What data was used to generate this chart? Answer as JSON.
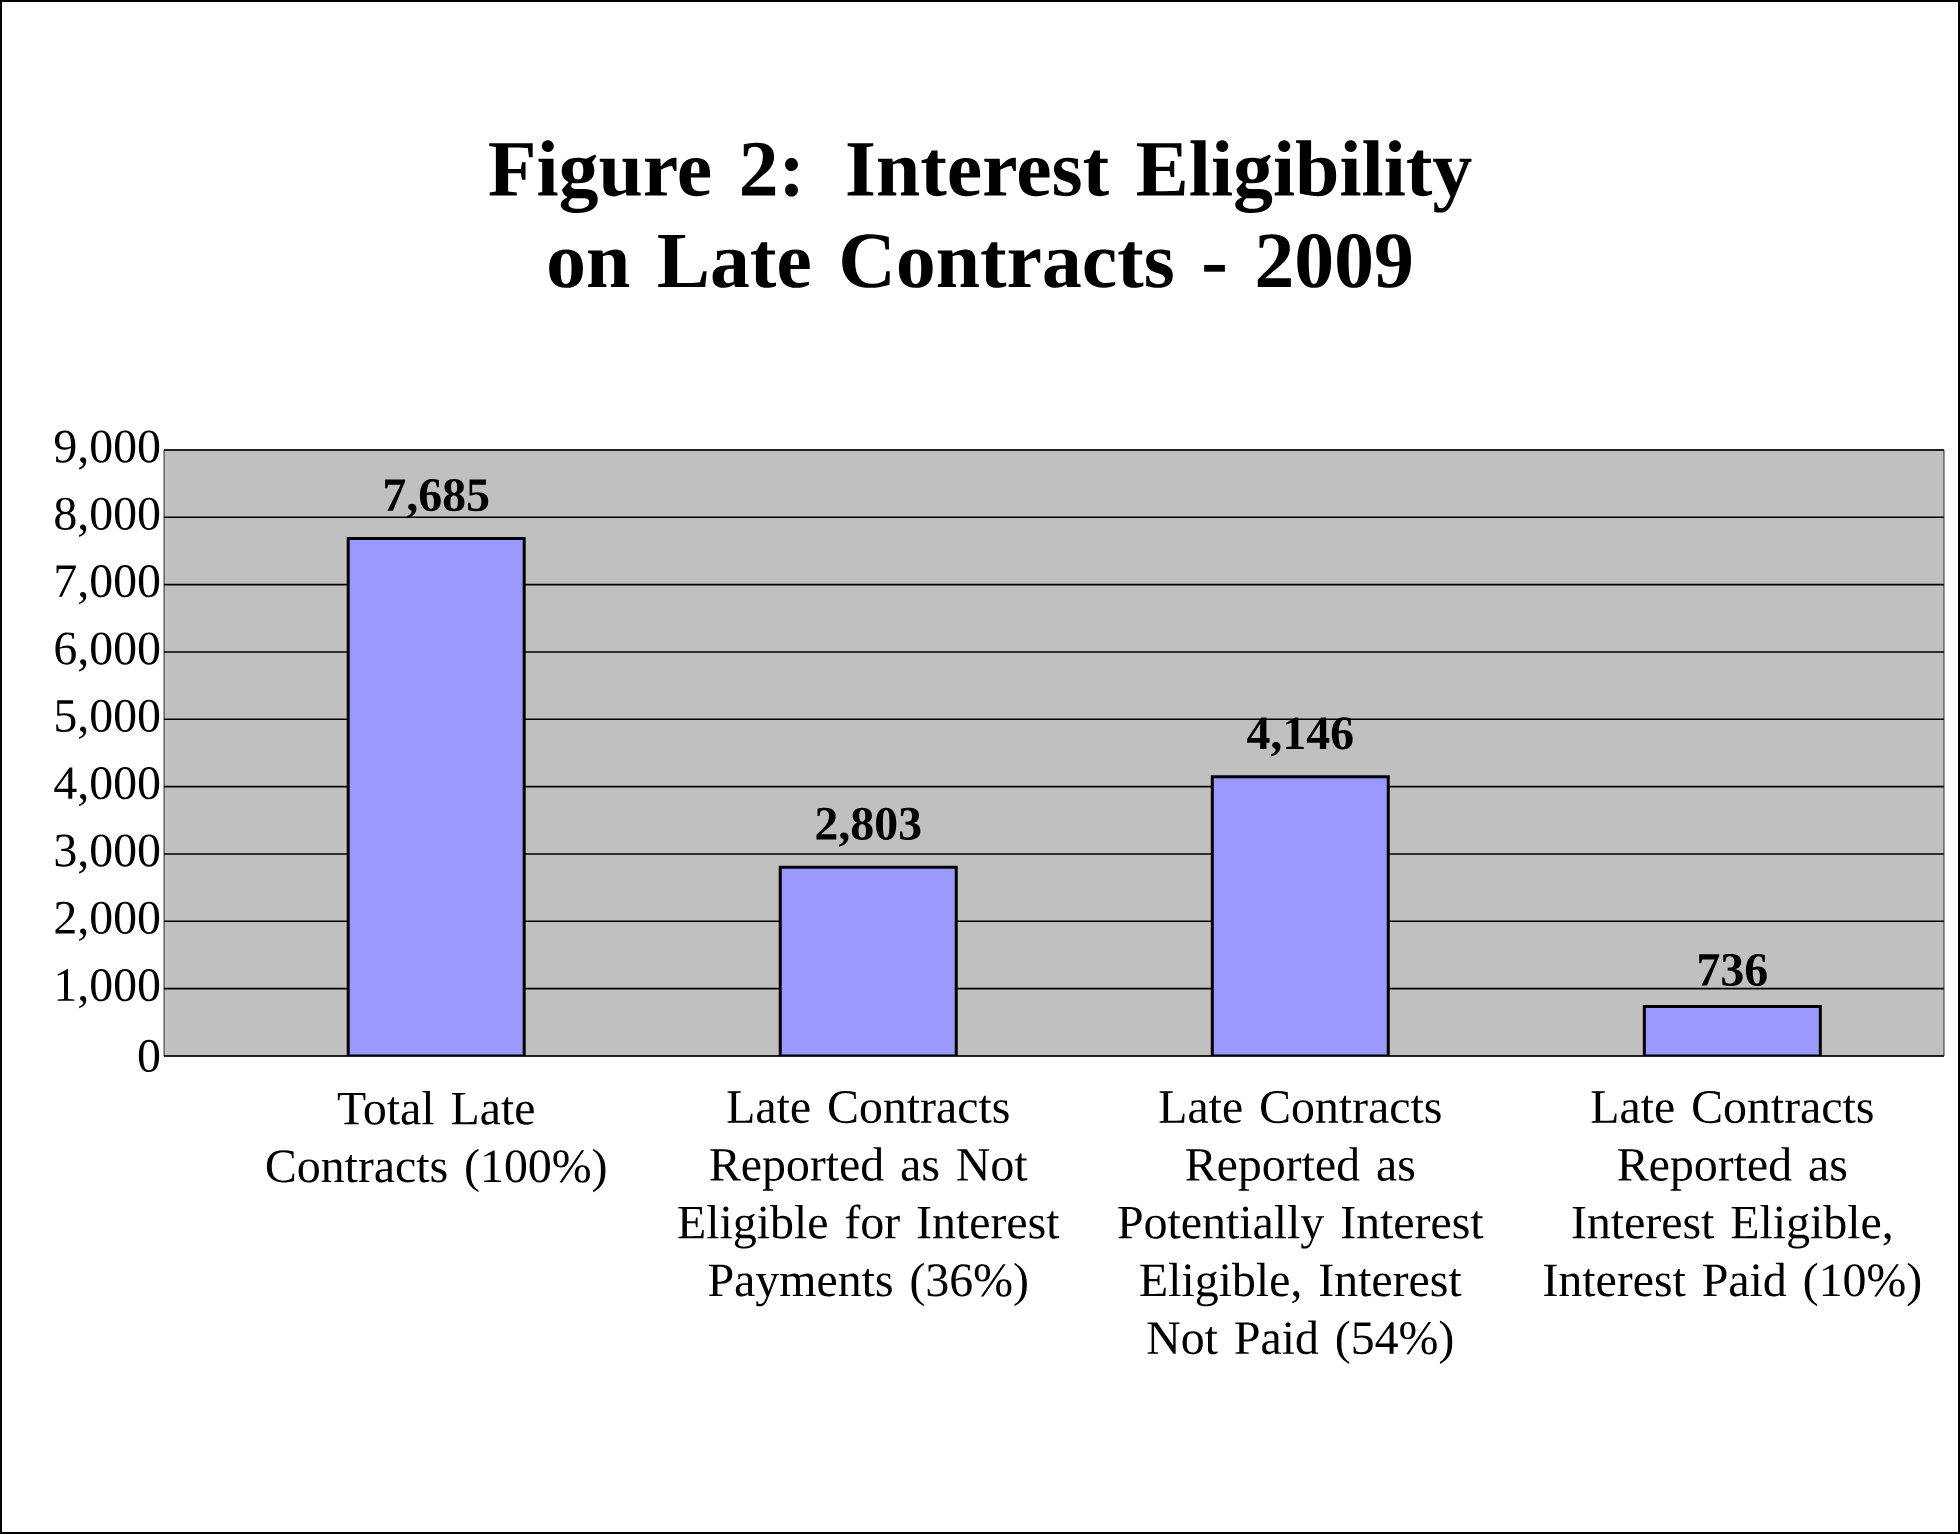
{
  "chart_data": {
    "type": "bar",
    "title": "Figure 2: Interest Eligibility on Late Contracts - 2009",
    "categories": [
      "Total Late Contracts (100%)",
      "Late Contracts Reported as Not Eligible for Interest Payments (36%)",
      "Late Contracts Reported as Potentially Interest Eligible, Interest Not Paid (54%)",
      "Late Contracts Reported as Interest Eligible, Interest Paid (10%)"
    ],
    "values": [
      7685,
      2803,
      4146,
      736
    ],
    "color": "#9999ff",
    "ylim": [
      0,
      9000
    ],
    "yticks": [
      0,
      {
        "value": 1000,
        "label": "1,000"
      },
      {
        "value": 2000,
        "label": "2,000"
      },
      {
        "value": 3000,
        "label": "3,000"
      },
      {
        "value": 4000,
        "label": "4,000"
      },
      {
        "value": 5000,
        "label": "5,000"
      },
      {
        "value": 6000,
        "label": "6,000"
      },
      {
        "value": 7000,
        "label": "7,000"
      },
      {
        "value": 8000,
        "label": "8,000"
      },
      {
        "value": 9000,
        "label": "9,000"
      }
    ],
    "grid": true,
    "value_labels": [
      "7,685",
      "2,803",
      "4,146",
      "736"
    ]
  }
}
